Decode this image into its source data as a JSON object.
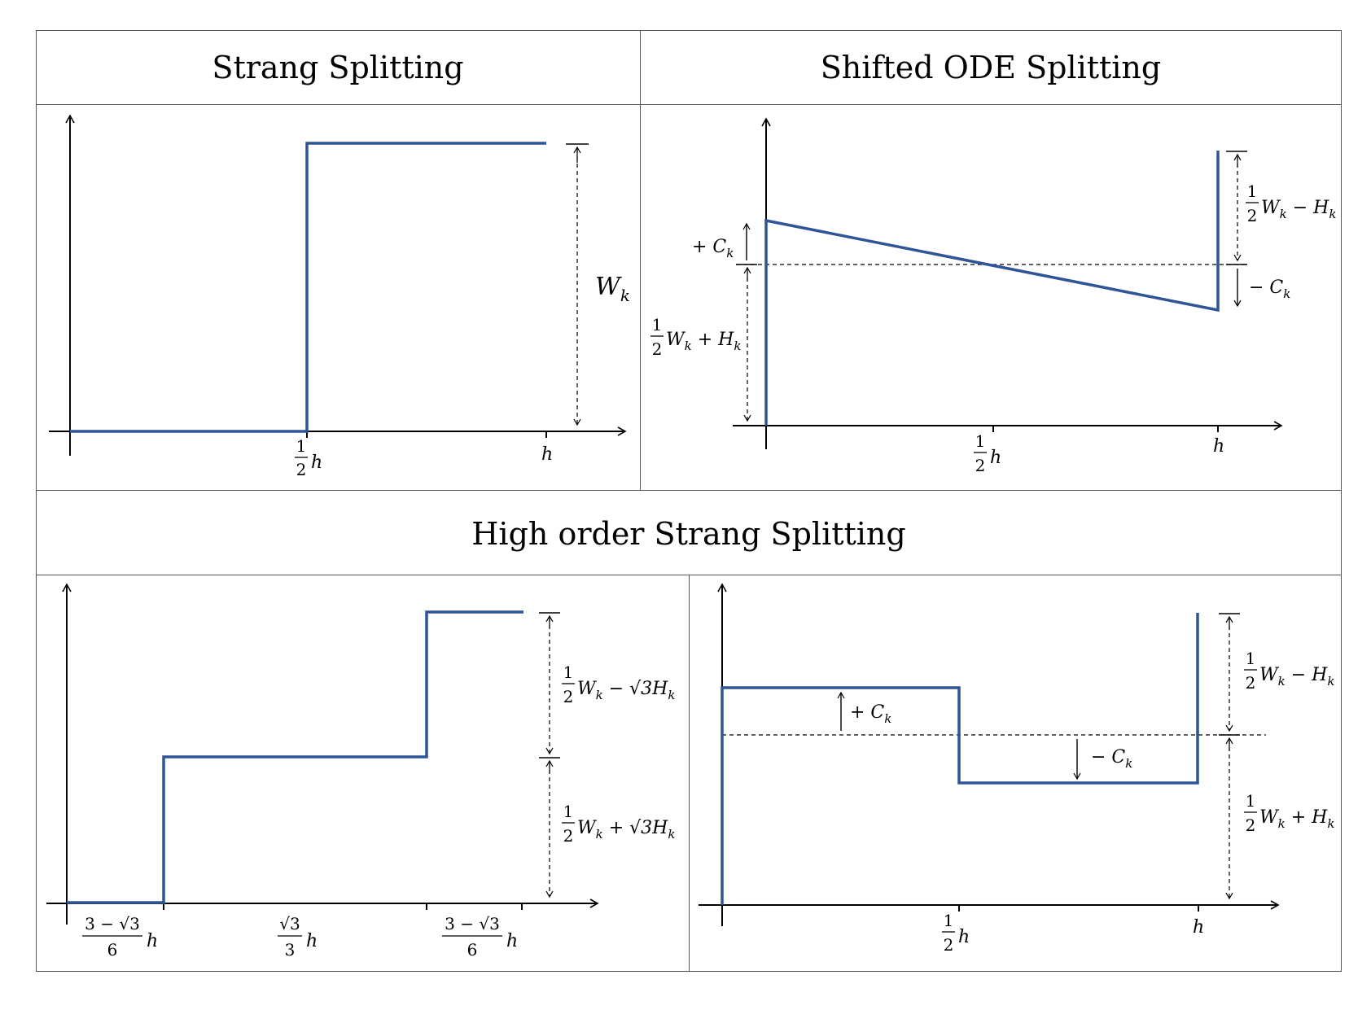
{
  "titles": {
    "strang": "Strang Splitting",
    "shifted": "Shifted ODE Splitting",
    "high_order": "High order Strang Splitting"
  },
  "colors": {
    "curve": "#2f5597",
    "axis": "#000000",
    "grid": "#555555"
  },
  "labels": {
    "p1": {
      "half": "1",
      "two": "2",
      "h1": "h",
      "h2": "h",
      "w": "W",
      "k": "k"
    },
    "p2": {
      "top_num": "1",
      "top_den": "2",
      "top_rest_w": "W",
      "top_k1": "k",
      "top_minus": " − H",
      "top_k2": "k",
      "plus_c": "+ C",
      "plus_c_k": "k",
      "minus_c": "− C",
      "minus_c_k": "k",
      "low_num": "1",
      "low_den": "2",
      "low_rest_w": "W",
      "low_k1": "k",
      "low_plus": " + H",
      "low_k2": "k",
      "half_num": "1",
      "half_den": "2",
      "half_h": "h",
      "h": "h"
    },
    "p3": {
      "top_num": "1",
      "top_den": "2",
      "top_w": "W",
      "top_k1": "k",
      "top_op": " − √3H",
      "top_k2": "k",
      "low_num": "1",
      "low_den": "2",
      "low_w": "W",
      "low_k1": "k",
      "low_op": " + √3H",
      "low_k2": "k",
      "t1_num": "3 − √3",
      "t1_den": "6",
      "t1_h": "h",
      "t2_num": "√3",
      "t2_den": "3",
      "t2_h": "h",
      "t3_num": "3 − √3",
      "t3_den": "6",
      "t3_h": "h"
    },
    "p4": {
      "top_num": "1",
      "top_den": "2",
      "top_w": "W",
      "top_k1": "k",
      "top_op": " − H",
      "top_k2": "k",
      "low_num": "1",
      "low_den": "2",
      "low_w": "W",
      "low_k1": "k",
      "low_op": " + H",
      "low_k2": "k",
      "plus_c": "+ C",
      "plus_c_k": "k",
      "minus_c": "− C",
      "minus_c_k": "k",
      "half_num": "1",
      "half_den": "2",
      "half_h": "h",
      "h": "h"
    }
  }
}
